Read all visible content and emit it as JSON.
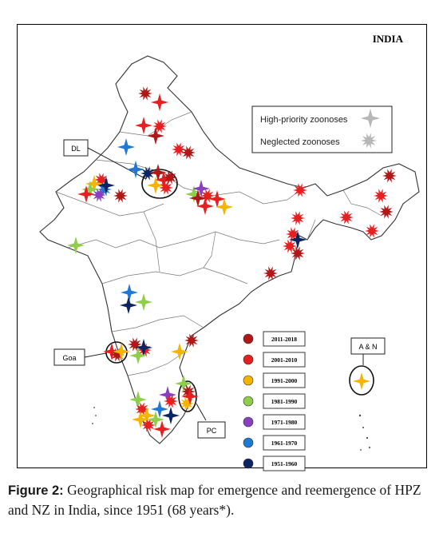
{
  "map": {
    "title": "INDIA",
    "legend_types": [
      {
        "label": "High-priority zoonoses",
        "icon": "four-point-star-icon"
      },
      {
        "label": "Neglected zoonoses",
        "icon": "multi-point-burst-icon"
      }
    ],
    "period_legend": [
      {
        "label": "2011-2018",
        "color": "#b01818"
      },
      {
        "label": "2001-2010",
        "color": "#e62020"
      },
      {
        "label": "1991-2000",
        "color": "#f5b400"
      },
      {
        "label": "1981-1990",
        "color": "#8fce4a"
      },
      {
        "label": "1971-1980",
        "color": "#8a3fc0"
      },
      {
        "label": "1961-1970",
        "color": "#1f78d1"
      },
      {
        "label": "1951-1960",
        "color": "#0c2461"
      }
    ],
    "callouts": {
      "dl": "DL",
      "goa": "Goa",
      "pc": "PC",
      "an": "A & N"
    }
  },
  "caption": {
    "figure_label": "Figure 2:",
    "text": " Geographical risk map for emergence and reemergence of HPZ and NZ in India, since 1951 (68 years*)."
  }
}
